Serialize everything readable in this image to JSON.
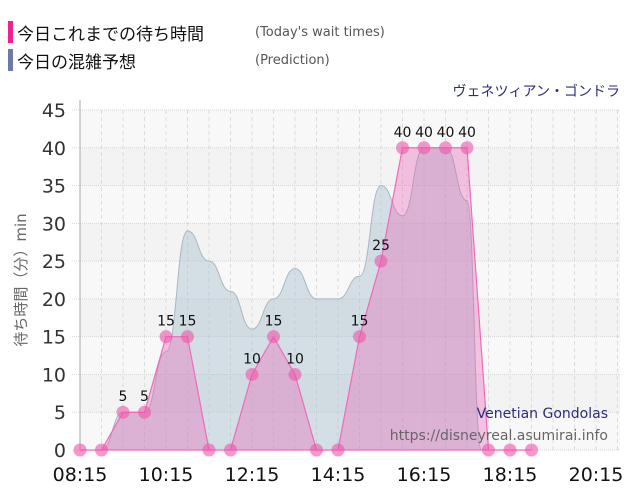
{
  "legend": [
    {
      "label_jp": "今日これまでの待ち時間",
      "label_en": "(Today's wait times)",
      "color": "#f21f8f"
    },
    {
      "label_jp": "今日の混雑予想",
      "label_en": "(Prediction)",
      "color": "#6b7aa8"
    }
  ],
  "attraction": {
    "name_jp": "ヴェネツィアン・ゴンドラ",
    "name_en": "Venetian Gondolas"
  },
  "watermark": "https://disneyreal.asumirai.info",
  "chart_data": {
    "type": "area",
    "title": "ヴェネツィアン・ゴンドラ",
    "xlabel": "",
    "ylabel": "待ち時間（分）min",
    "ylim": [
      0,
      45
    ],
    "yticks": [
      0,
      5,
      10,
      15,
      20,
      25,
      30,
      35,
      40,
      45
    ],
    "xtick_labels": [
      "08:15",
      "10:15",
      "12:15",
      "14:15",
      "16:15",
      "18:15",
      "20:15"
    ],
    "grid": true,
    "legend_position": "top-left",
    "series": [
      {
        "name": "今日これまでの待ち時間 (Today's wait times)",
        "color": "#f21f8f",
        "x": [
          "08:15",
          "08:45",
          "09:15",
          "09:45",
          "10:15",
          "10:45",
          "11:15",
          "11:45",
          "12:15",
          "12:45",
          "13:15",
          "13:45",
          "14:15",
          "14:45",
          "15:15",
          "15:45",
          "16:15",
          "16:45",
          "17:15",
          "17:45",
          "18:15",
          "18:45"
        ],
        "values": [
          0,
          0,
          5,
          5,
          15,
          15,
          0,
          0,
          10,
          15,
          10,
          0,
          0,
          15,
          25,
          40,
          40,
          40,
          40,
          0,
          0,
          0
        ]
      },
      {
        "name": "今日の混雑予想 (Prediction)",
        "color": "#6b7aa8",
        "x": [
          "08:45",
          "09:15",
          "09:45",
          "10:15",
          "10:45",
          "11:15",
          "11:45",
          "12:15",
          "12:45",
          "13:15",
          "13:45",
          "14:15",
          "14:45",
          "15:15",
          "15:45",
          "16:15",
          "16:45",
          "17:15",
          "17:35"
        ],
        "values": [
          0,
          5,
          5,
          13,
          29,
          25,
          21,
          16,
          20,
          24,
          20,
          20,
          23,
          35,
          31,
          40,
          40,
          33,
          0
        ]
      }
    ]
  }
}
